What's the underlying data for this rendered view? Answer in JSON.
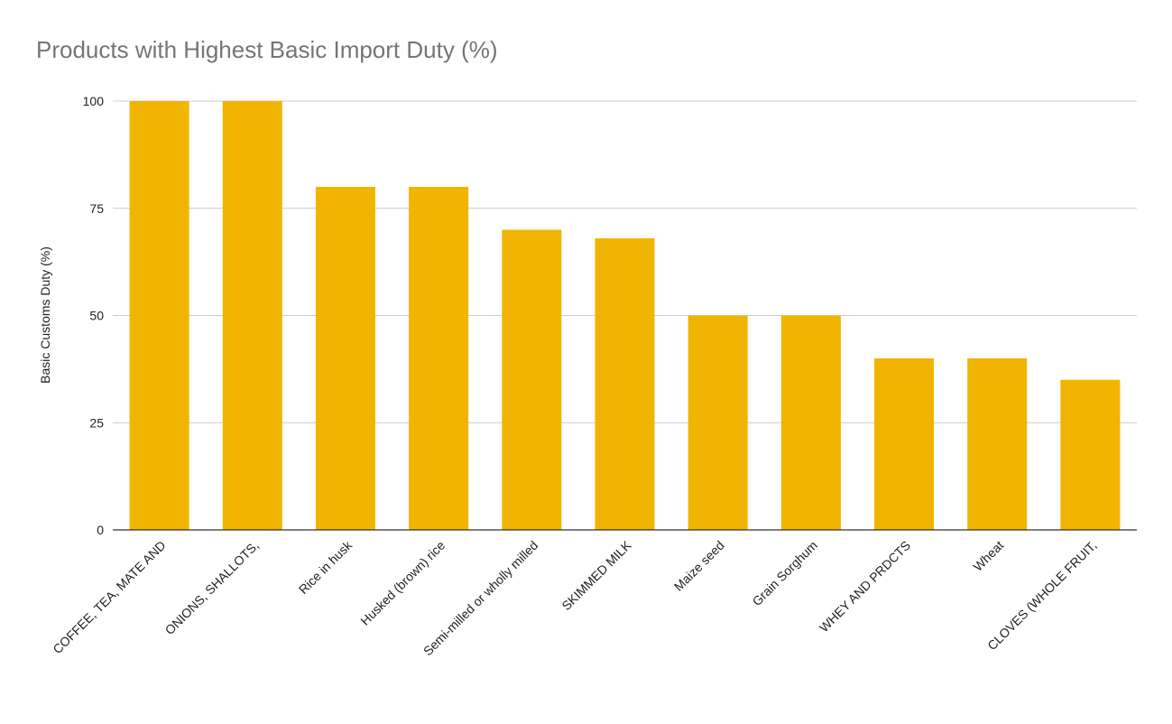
{
  "chart_data": {
    "type": "bar",
    "title": "Products with Highest Basic Import Duty (%)",
    "xlabel": "",
    "ylabel": "Basic Customs Duty (%)",
    "ylim": [
      0,
      100
    ],
    "yticks": [
      "0",
      "25",
      "50",
      "75",
      "100"
    ],
    "grid": true,
    "legend": "none",
    "bar_color": "#F1B400",
    "categories": [
      "COFFEE, TEA, MATE AND",
      "ONIONS, SHALLOTS,",
      "Rice in husk",
      "Husked (brown) rice",
      "Semi-milled or wholly milled",
      "SKIMMED MILK",
      "Maize seed",
      "Grain Sorghum",
      "WHEY AND PRDCTS",
      "Wheat",
      "CLOVES (WHOLE FRUIT,"
    ],
    "values": [
      100,
      100,
      80,
      80,
      70,
      68,
      50,
      50,
      40,
      40,
      35
    ]
  }
}
